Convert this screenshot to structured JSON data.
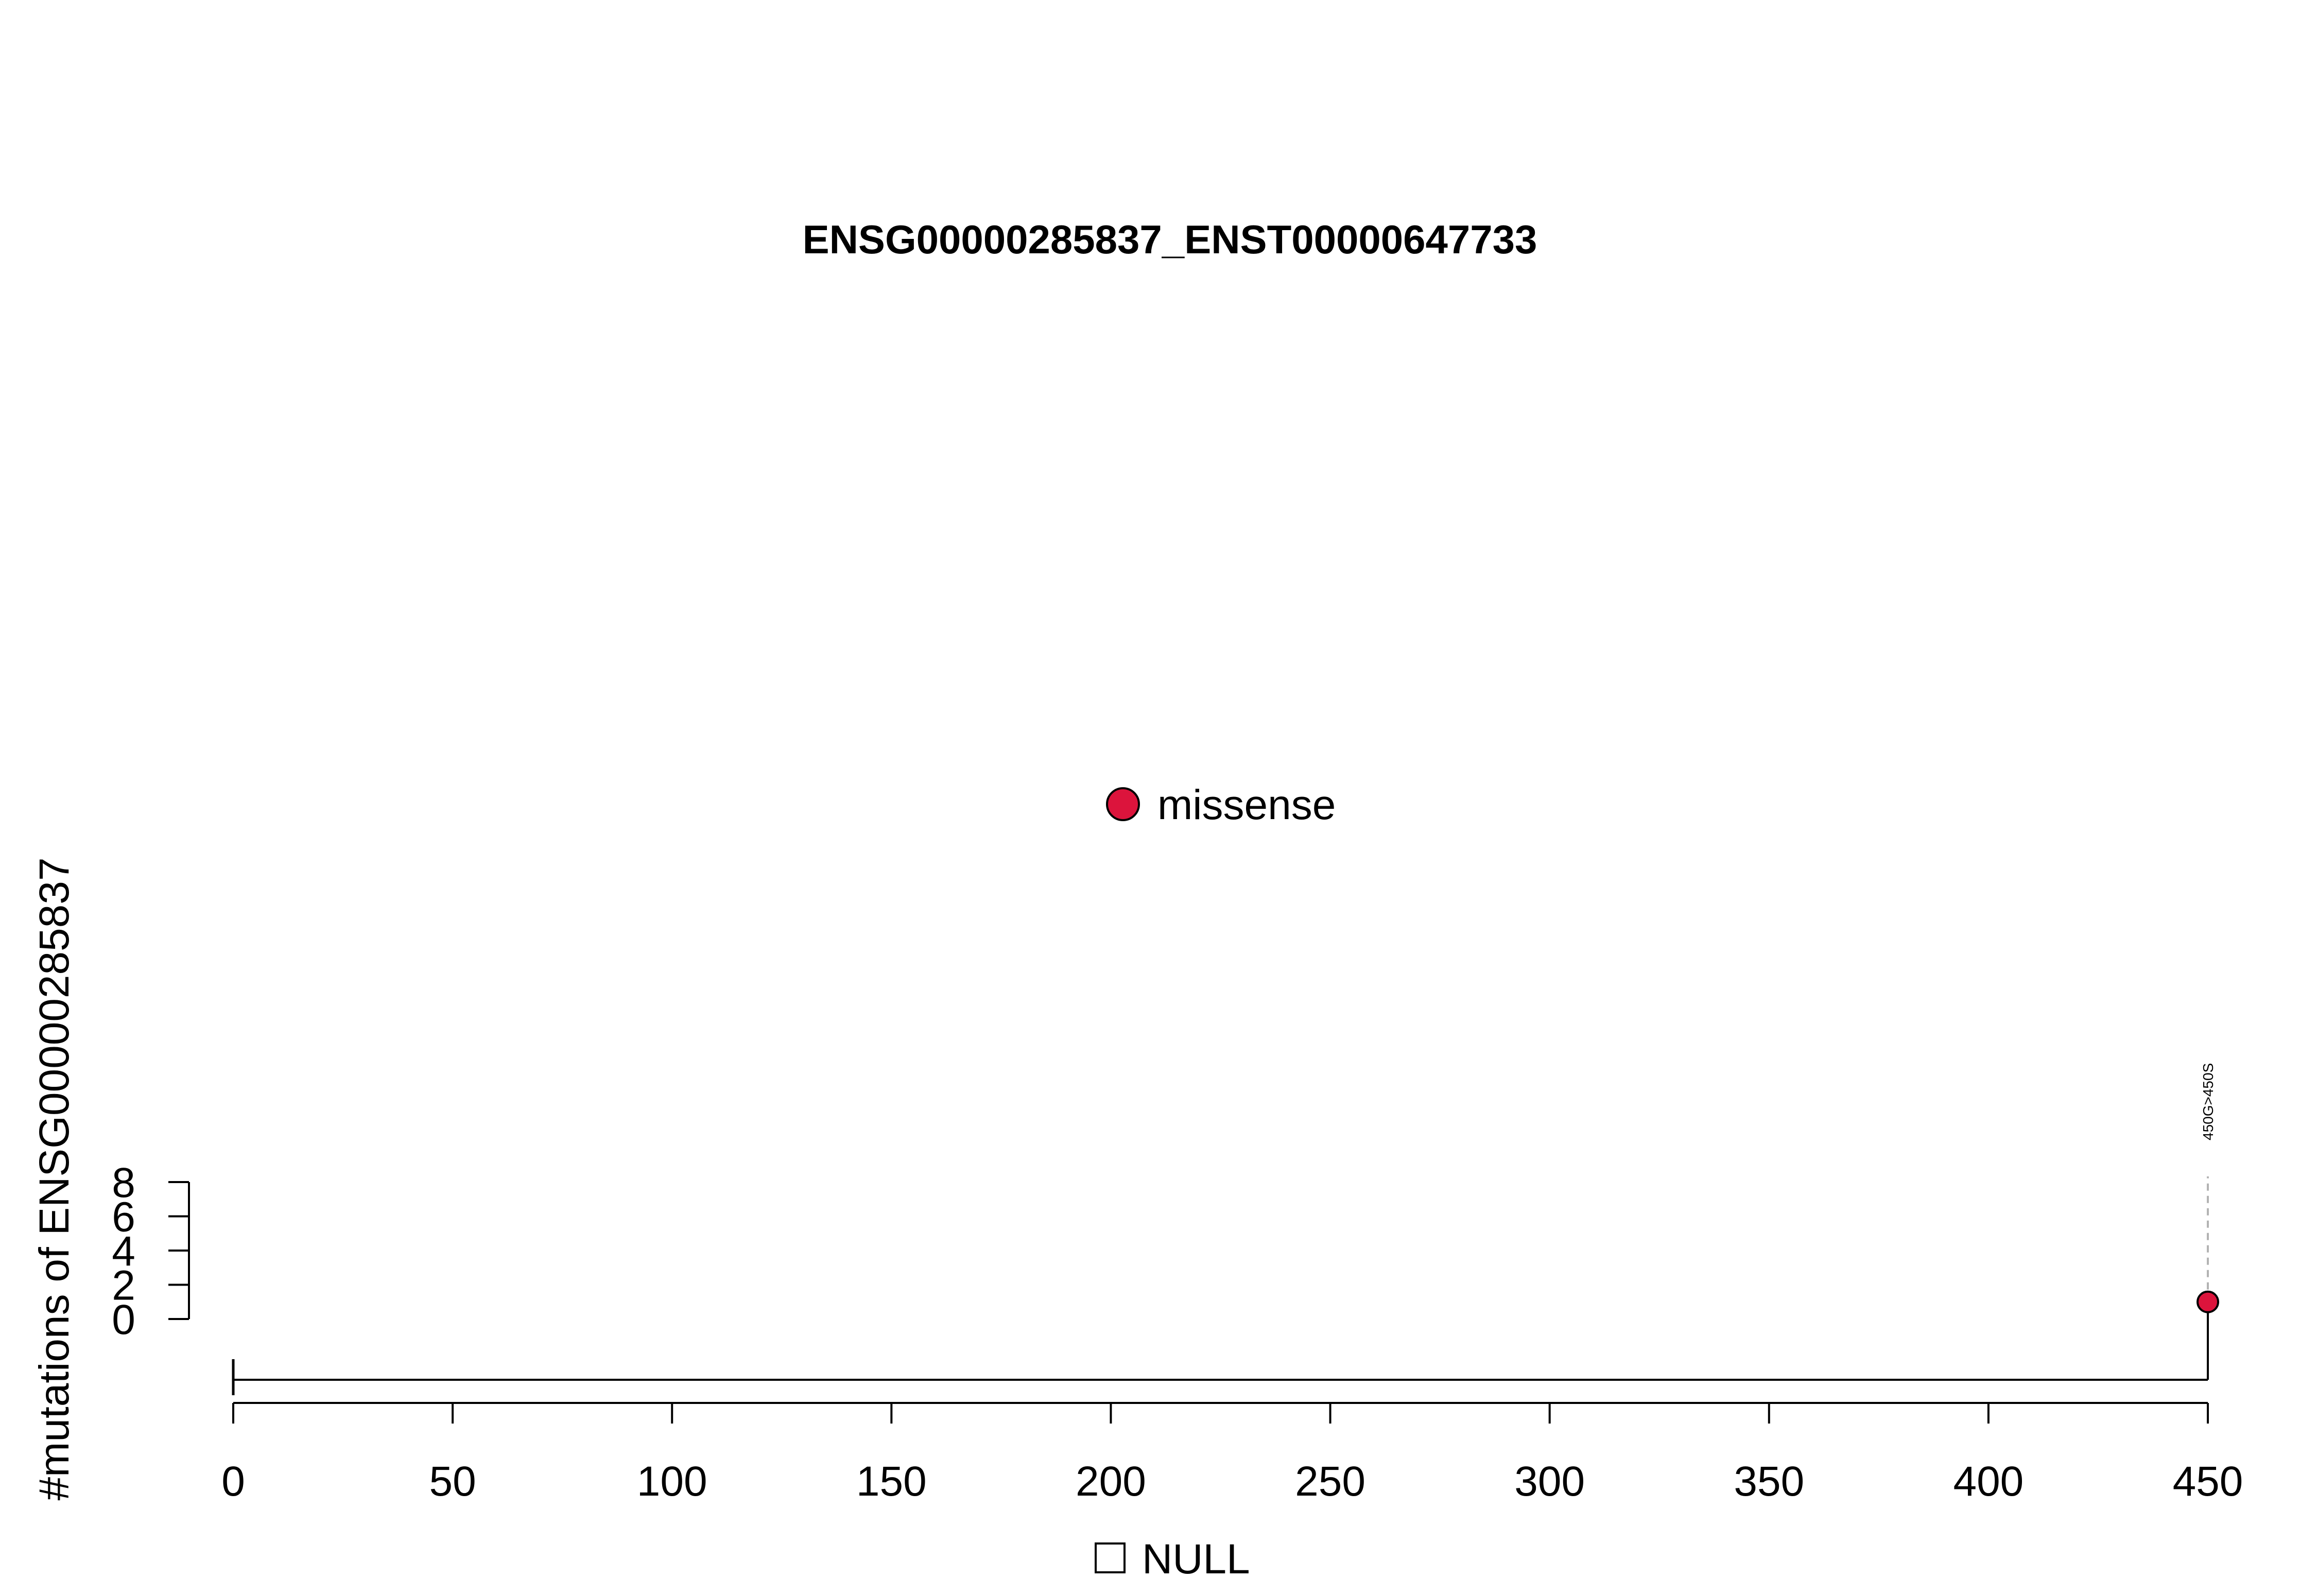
{
  "chart_data": {
    "type": "lollipop",
    "title": "ENSG00000285837_ENST00000647733",
    "ylabel": "#mutations of ENSG00000285837",
    "xlim": [
      0,
      450
    ],
    "x_ticks": [
      "0",
      "50",
      "100",
      "150",
      "200",
      "250",
      "300",
      "350",
      "400",
      "450"
    ],
    "x_tick_values": [
      0,
      50,
      100,
      150,
      200,
      250,
      300,
      350,
      400,
      450
    ],
    "ylim": [
      0,
      8
    ],
    "y_ticks": [
      "0",
      "2",
      "4",
      "6",
      "8"
    ],
    "y_tick_values": [
      0,
      2,
      4,
      6,
      8
    ],
    "protein_length": 450,
    "mutation_legend": [
      {
        "label": "missense",
        "color": "#DC143C"
      }
    ],
    "domain_legend": [
      {
        "label": "NULL",
        "color": "#ffffff"
      }
    ],
    "mutations": [
      {
        "position": 450,
        "count": 1,
        "type": "missense",
        "label": "450G>450S",
        "color": "#DC143C"
      }
    ]
  }
}
